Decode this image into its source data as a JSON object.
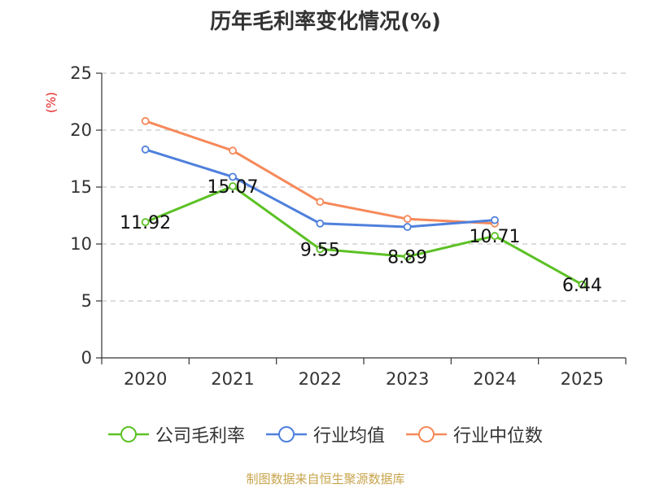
{
  "title": "历年毛利率变化情况(%)",
  "source": "制图数据来自恒生聚源数据库",
  "chart_data": {
    "type": "line",
    "title": "历年毛利率变化情况(%)",
    "xlabel": "",
    "ylabel": "(%)",
    "categories": [
      "2020",
      "2021",
      "2022",
      "2023",
      "2024",
      "2025"
    ],
    "ylim": [
      0,
      25
    ],
    "yticks": [
      0,
      5,
      10,
      15,
      20,
      25
    ],
    "grid": true,
    "legend": "bottom",
    "series": [
      {
        "name": "公司毛利率",
        "color": "#5cc125",
        "values": [
          11.92,
          15.07,
          9.55,
          8.89,
          10.71,
          6.44
        ],
        "labels": [
          "11.92",
          "15.07",
          "9.55",
          "8.89",
          "10.71",
          "6.44"
        ]
      },
      {
        "name": "行业均值",
        "color": "#4f80dc",
        "values": [
          18.3,
          15.9,
          11.8,
          11.5,
          12.1,
          null
        ]
      },
      {
        "name": "行业中位数",
        "color": "#f5895a",
        "values": [
          20.8,
          18.2,
          13.7,
          12.2,
          11.8,
          null
        ]
      }
    ]
  }
}
